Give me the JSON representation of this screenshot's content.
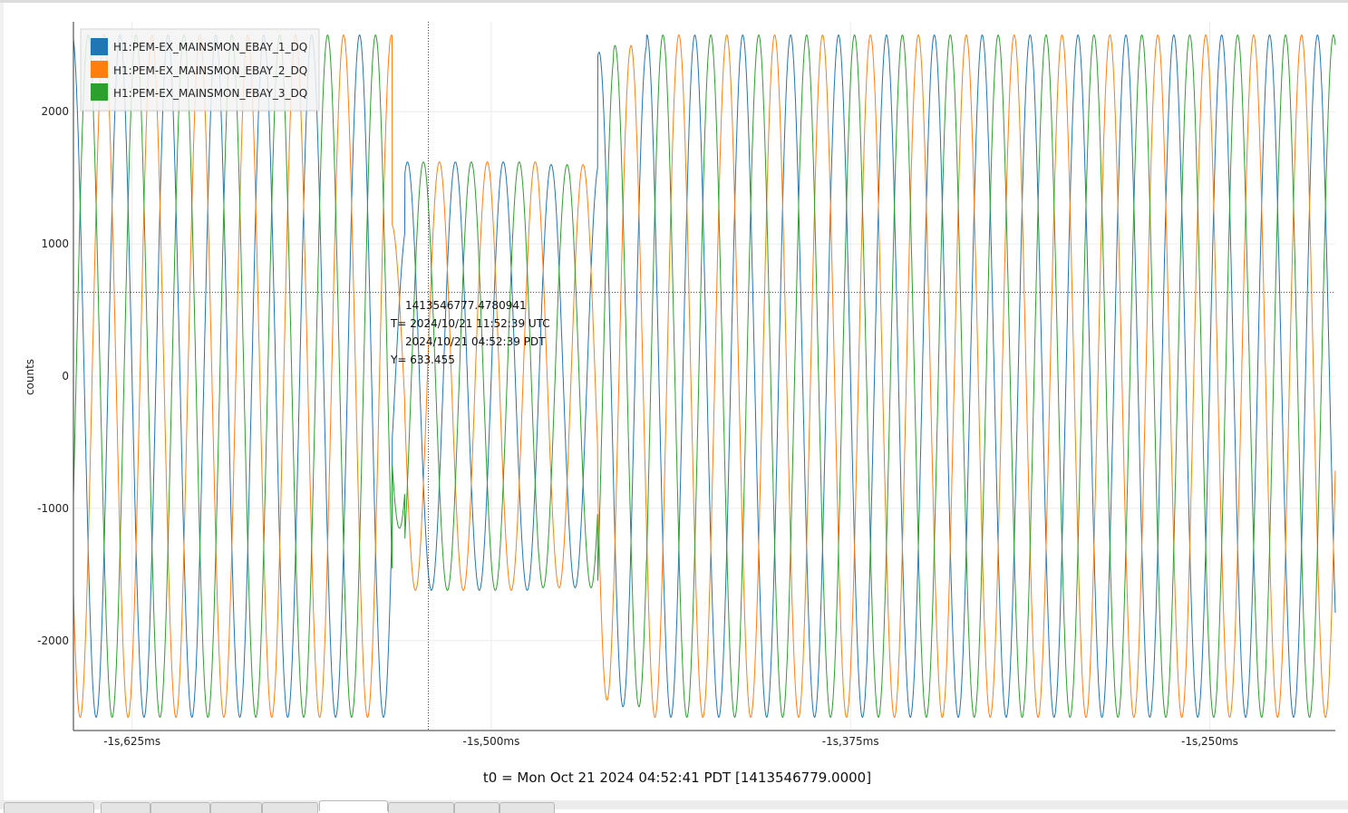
{
  "chart_data": {
    "type": "line",
    "title": "",
    "xlabel": "t0 = Mon Oct 21 2024 04:52:41 PDT [1413546779.0000]",
    "ylabel": "counts",
    "x_unit": "s relative to t0",
    "xlim": [
      -1.6454,
      -1.2063
    ],
    "ylim": [
      -2680,
      2680
    ],
    "x_ticks": [
      {
        "value": -1.625,
        "label": "-1s,625ms"
      },
      {
        "value": -1.5,
        "label": "-1s,500ms"
      },
      {
        "value": -1.375,
        "label": "-1s,375ms"
      },
      {
        "value": -1.25,
        "label": "-1s,250ms"
      }
    ],
    "y_ticks": [
      {
        "value": 2000,
        "label": "2000"
      },
      {
        "value": 1000,
        "label": "1000"
      },
      {
        "value": 0,
        "label": "0"
      },
      {
        "value": -1000,
        "label": "-1000"
      },
      {
        "value": -2000,
        "label": "-2000"
      }
    ],
    "grid": true,
    "legend": "top-left",
    "series": [
      {
        "name": "H1:PEM-EX_MAINSMON_EBAY_1_DQ",
        "color": "#1f77b4",
        "model": "60 Hz sinusoid, phase 0 deg; amplitude in counts by time segment; transient between -1.534 s and -1.446 s",
        "segments": [
          {
            "x_start": -1.6454,
            "x_end": -1.5345,
            "amplitude": 2580,
            "offset": 0
          },
          {
            "x_start": -1.5345,
            "x_end": -1.5301,
            "amplitude": 1150,
            "offset": 0
          },
          {
            "x_start": -1.5301,
            "x_end": -1.4835,
            "amplitude": 1620,
            "offset": 0
          },
          {
            "x_start": -1.4835,
            "x_end": -1.463,
            "amplitude": 1600,
            "offset": 0
          },
          {
            "x_start": -1.463,
            "x_end": -1.4575,
            "amplitude": 2450,
            "offset": 0
          },
          {
            "x_start": -1.4575,
            "x_end": -1.446,
            "amplitude": 2500,
            "offset": 0
          },
          {
            "x_start": -1.446,
            "x_end": -1.2063,
            "amplitude": 2580,
            "offset": 0
          }
        ]
      },
      {
        "name": "H1:PEM-EX_MAINSMON_EBAY_2_DQ",
        "color": "#ff7f0e",
        "model": "60 Hz sinusoid, phase 120 deg; amplitude in counts by time segment",
        "segments": [
          {
            "x_start": -1.6454,
            "x_end": -1.5345,
            "amplitude": 2580,
            "offset": 0
          },
          {
            "x_start": -1.5345,
            "x_end": -1.5301,
            "amplitude": 1150,
            "offset": 0
          },
          {
            "x_start": -1.5301,
            "x_end": -1.4835,
            "amplitude": 1620,
            "offset": 0
          },
          {
            "x_start": -1.4835,
            "x_end": -1.463,
            "amplitude": 1600,
            "offset": 0
          },
          {
            "x_start": -1.463,
            "x_end": -1.4575,
            "amplitude": 2450,
            "offset": 0
          },
          {
            "x_start": -1.4575,
            "x_end": -1.446,
            "amplitude": 2500,
            "offset": 0
          },
          {
            "x_start": -1.446,
            "x_end": -1.2063,
            "amplitude": 2580,
            "offset": 0
          }
        ]
      },
      {
        "name": "H1:PEM-EX_MAINSMON_EBAY_3_DQ",
        "color": "#2ca02c",
        "model": "60 Hz sinusoid, phase 240 deg; amplitude in counts by time segment",
        "segments": [
          {
            "x_start": -1.6454,
            "x_end": -1.5345,
            "amplitude": 2580,
            "offset": 0
          },
          {
            "x_start": -1.5345,
            "x_end": -1.5301,
            "amplitude": 1150,
            "offset": 0
          },
          {
            "x_start": -1.5301,
            "x_end": -1.4835,
            "amplitude": 1620,
            "offset": 0
          },
          {
            "x_start": -1.4835,
            "x_end": -1.463,
            "amplitude": 1600,
            "offset": 0
          },
          {
            "x_start": -1.463,
            "x_end": -1.4575,
            "amplitude": 2450,
            "offset": 0
          },
          {
            "x_start": -1.4575,
            "x_end": -1.446,
            "amplitude": 2500,
            "offset": 0
          },
          {
            "x_start": -1.446,
            "x_end": -1.2063,
            "amplitude": 2580,
            "offset": 0
          }
        ]
      }
    ],
    "cursor": {
      "x": -1.5219059,
      "y": 633.455,
      "gps": "1413546777.4780941",
      "utc_line": "T= 2024/10/21 11:52:39 UTC",
      "pdt_line": "2024/10/21 04:52:39 PDT",
      "y_line": "Y= 633.455"
    }
  }
}
